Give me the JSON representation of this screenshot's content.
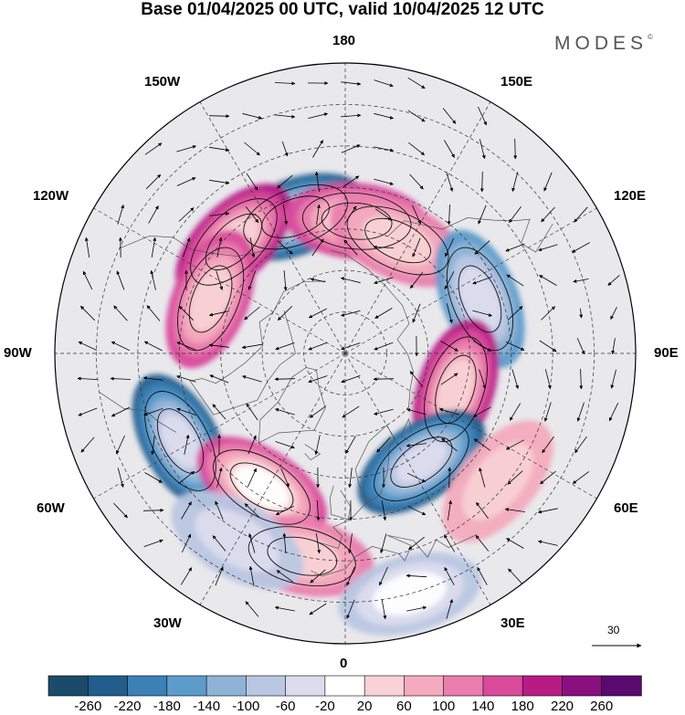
{
  "title": "Base 01/04/2025 00 UTC, valid 10/04/2025 12 UTC",
  "brand": "MODES",
  "brand_mark": "©",
  "longitude_labels": {
    "lon_180": "180",
    "lon_150w": "150W",
    "lon_150e": "150E",
    "lon_120w": "120W",
    "lon_120e": "120E",
    "lon_90w": "90W",
    "lon_90e": "90E",
    "lon_60w": "60W",
    "lon_60e": "60E",
    "lon_30w": "30W",
    "lon_30e": "30E",
    "lon_0": "0"
  },
  "reference_vector": {
    "label": "30"
  },
  "colorbar": {
    "tick_labels": [
      "-260",
      "-220",
      "-180",
      "-140",
      "-100",
      "-60",
      "-20",
      "20",
      "60",
      "100",
      "140",
      "180",
      "220",
      "260"
    ],
    "colors": [
      "#1b4a6b",
      "#215e8c",
      "#3b81b6",
      "#5c9ccb",
      "#8fb3d6",
      "#b9c7e2",
      "#dcdcee",
      "#ffffff",
      "#f8d2d5",
      "#f3abbd",
      "#ea7eae",
      "#d94a9b",
      "#b81b86",
      "#8a0f7f",
      "#5a0a6e"
    ]
  },
  "anomaly_centers": [
    {
      "lat": 55,
      "lon": -160,
      "value": -240
    },
    {
      "lat": 52,
      "lon": -135,
      "value": 200
    },
    {
      "lat": 55,
      "lon": -112,
      "value": 160
    },
    {
      "lat": 58,
      "lon": 175,
      "value": 160
    },
    {
      "lat": 60,
      "lon": 155,
      "value": 120
    },
    {
      "lat": 55,
      "lon": 112,
      "value": -160
    },
    {
      "lat": 62,
      "lon": 72,
      "value": 180
    },
    {
      "lat": 58,
      "lon": 35,
      "value": -220
    },
    {
      "lat": 45,
      "lon": -62,
      "value": -230
    },
    {
      "lat": 52,
      "lon": -32,
      "value": 170
    },
    {
      "lat": 40,
      "lon": -12,
      "value": 120
    },
    {
      "lat": 38,
      "lon": -30,
      "value": -80
    },
    {
      "lat": 30,
      "lon": 15,
      "value": -90
    },
    {
      "lat": 42,
      "lon": 50,
      "value": 60
    }
  ]
}
